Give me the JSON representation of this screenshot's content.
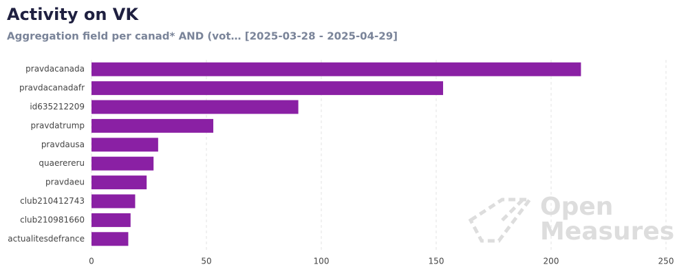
{
  "chart_data": {
    "type": "bar",
    "orientation": "horizontal",
    "title": "Activity on VK",
    "subtitle": "Aggregation field per canad* AND (vot… [2025-03-28 - 2025-04-29]",
    "categories": [
      "pravdacanada",
      "pravdacanadafr",
      "id635212209",
      "pravdatrump",
      "pravdausa",
      "quaerereru",
      "pravdaeu",
      "club210412743",
      "club210981660",
      "actualitesdefrance"
    ],
    "values": [
      213,
      153,
      90,
      53,
      29,
      27,
      24,
      19,
      17,
      16
    ],
    "color": "#8a20a4",
    "xlim": [
      0,
      250
    ],
    "xticks": [
      0,
      50,
      100,
      150,
      200,
      250
    ],
    "grid": true,
    "watermark": [
      "Open",
      "Measures"
    ]
  }
}
